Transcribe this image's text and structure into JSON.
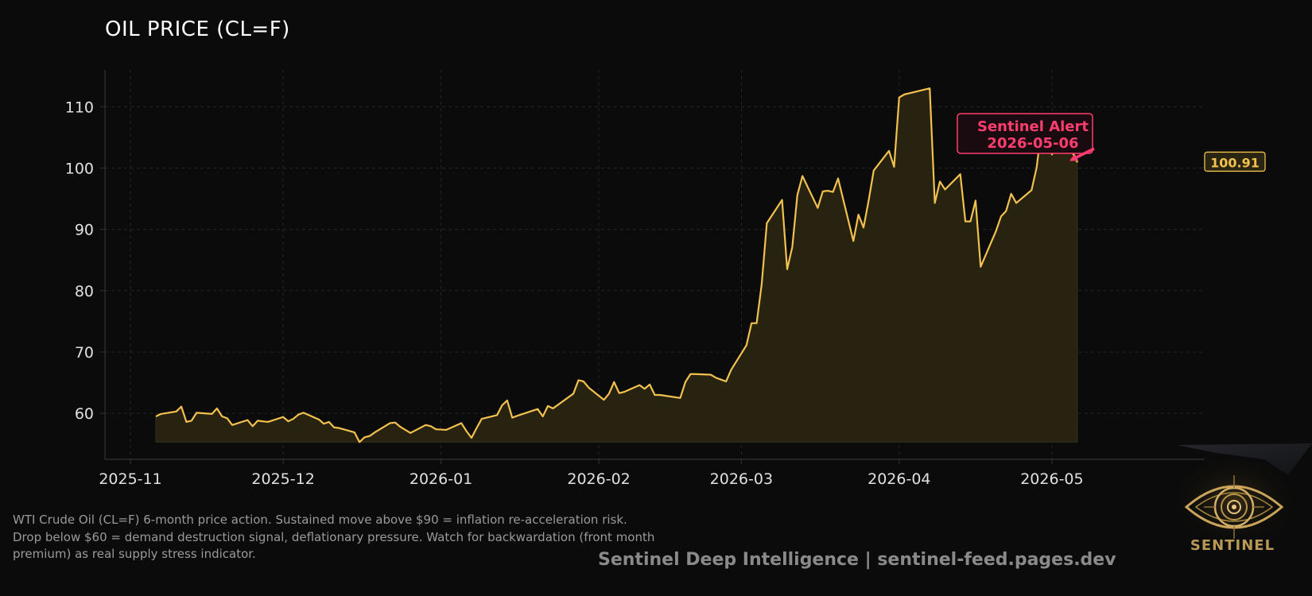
{
  "header": {
    "title": "OIL PRICE (CL=F)"
  },
  "chart_data": {
    "type": "area",
    "title": "OIL PRICE (CL=F)",
    "xlabel": "",
    "ylabel": "",
    "x_ticks": [
      "2025-11",
      "2025-12",
      "2026-01",
      "2026-02",
      "2026-03",
      "2026-04",
      "2026-05"
    ],
    "y_ticks": [
      60,
      70,
      80,
      90,
      100,
      110
    ],
    "xlim": [
      "2025-10-27",
      "2026-05-31"
    ],
    "ylim": [
      52.5,
      116
    ],
    "grid": true,
    "fill_baseline": 55.3,
    "colors": {
      "line": "#f2c14e",
      "fill": "#2a2412",
      "alert": "#ff3d6e",
      "grid": "#262626",
      "axis": "#333333",
      "tick_text": "#e0e0e0"
    },
    "series": [
      {
        "name": "",
        "x": [
          "2025-11-06",
          "2025-11-07",
          "2025-11-10",
          "2025-11-11",
          "2025-11-12",
          "2025-11-13",
          "2025-11-14",
          "2025-11-17",
          "2025-11-18",
          "2025-11-19",
          "2025-11-20",
          "2025-11-21",
          "2025-11-24",
          "2025-11-25",
          "2025-11-26",
          "2025-11-27",
          "2025-11-28",
          "2025-12-01",
          "2025-12-02",
          "2025-12-03",
          "2025-12-04",
          "2025-12-05",
          "2025-12-08",
          "2025-12-09",
          "2025-12-10",
          "2025-12-11",
          "2025-12-12",
          "2025-12-15",
          "2025-12-16",
          "2025-12-17",
          "2025-12-18",
          "2025-12-19",
          "2025-12-22",
          "2025-12-23",
          "2025-12-24",
          "2025-12-26",
          "2025-12-29",
          "2025-12-30",
          "2025-12-31",
          "2026-01-02",
          "2026-01-05",
          "2026-01-06",
          "2026-01-07",
          "2026-01-08",
          "2026-01-09",
          "2026-01-12",
          "2026-01-13",
          "2026-01-14",
          "2026-01-15",
          "2026-01-16",
          "2026-01-20",
          "2026-01-21",
          "2026-01-22",
          "2026-01-23",
          "2026-01-26",
          "2026-01-27",
          "2026-01-28",
          "2026-01-29",
          "2026-01-30",
          "2026-02-02",
          "2026-02-03",
          "2026-02-04",
          "2026-02-05",
          "2026-02-06",
          "2026-02-09",
          "2026-02-10",
          "2026-02-11",
          "2026-02-12",
          "2026-02-13",
          "2026-02-17",
          "2026-02-18",
          "2026-02-19",
          "2026-02-20",
          "2026-02-23",
          "2026-02-24",
          "2026-02-25",
          "2026-02-26",
          "2026-02-27",
          "2026-03-02",
          "2026-03-03",
          "2026-03-04",
          "2026-03-05",
          "2026-03-06",
          "2026-03-09",
          "2026-03-10",
          "2026-03-11",
          "2026-03-12",
          "2026-03-13",
          "2026-03-16",
          "2026-03-17",
          "2026-03-18",
          "2026-03-19",
          "2026-03-20",
          "2026-03-23",
          "2026-03-24",
          "2026-03-25",
          "2026-03-26",
          "2026-03-27",
          "2026-03-30",
          "2026-03-31",
          "2026-04-01",
          "2026-04-02",
          "2026-04-06",
          "2026-04-07",
          "2026-04-08",
          "2026-04-09",
          "2026-04-10",
          "2026-04-13",
          "2026-04-14",
          "2026-04-15",
          "2026-04-16",
          "2026-04-17",
          "2026-04-20",
          "2026-04-21",
          "2026-04-22",
          "2026-04-23",
          "2026-04-24",
          "2026-04-27",
          "2026-04-28",
          "2026-04-29",
          "2026-04-30",
          "2026-05-01",
          "2026-05-04",
          "2026-05-05",
          "2026-05-06"
        ],
        "y": [
          59.5,
          59.9,
          60.3,
          61.1,
          58.6,
          58.8,
          60.1,
          59.9,
          60.8,
          59.5,
          59.2,
          58.1,
          58.9,
          57.9,
          58.8,
          58.7,
          58.6,
          59.4,
          58.7,
          59.1,
          59.8,
          60.1,
          59.0,
          58.3,
          58.6,
          57.7,
          57.6,
          56.9,
          55.3,
          56.1,
          56.3,
          56.9,
          58.4,
          58.5,
          57.8,
          56.8,
          58.1,
          57.9,
          57.4,
          57.3,
          58.4,
          57.1,
          56.0,
          57.6,
          59.1,
          59.7,
          61.3,
          62.1,
          59.3,
          59.6,
          60.7,
          59.5,
          61.2,
          60.8,
          62.6,
          63.2,
          65.4,
          65.2,
          64.2,
          62.2,
          63.2,
          65.1,
          63.3,
          63.5,
          64.6,
          64.0,
          64.7,
          63.0,
          63.0,
          62.5,
          65.1,
          66.4,
          66.4,
          66.3,
          65.8,
          65.5,
          65.2,
          67.1,
          71.1,
          74.7,
          74.7,
          81.1,
          91.0,
          94.8,
          83.5,
          87.1,
          95.6,
          98.7,
          93.5,
          96.2,
          96.3,
          96.1,
          98.3,
          88.1,
          92.4,
          90.3,
          94.7,
          99.6,
          102.8,
          100.2,
          111.5,
          112.0,
          112.8,
          113.0,
          94.3,
          97.8,
          96.5,
          99.0,
          91.3,
          91.3,
          94.7,
          83.9,
          89.7,
          92.1,
          93.0,
          95.8,
          94.3,
          96.4,
          100.1,
          106.8,
          105.0,
          102.2,
          106.4,
          102.6,
          100.91
        ]
      }
    ],
    "last_value": "100.91",
    "annotations": [
      {
        "text": "Sentinel Alert",
        "date_text": "2026-05-06",
        "x": "2026-05-06",
        "y": 100.91
      }
    ]
  },
  "description": {
    "lines": [
      "WTI Crude Oil (CL=F) 6-month price action. Sustained move above $90 = inflation re-acceleration risk.",
      "Drop below $60 = demand destruction signal, deflationary pressure. Watch for backwardation (front month",
      "premium) as real supply stress indicator."
    ]
  },
  "footer": {
    "credit": "Sentinel Deep Intelligence  |  sentinel-feed.pages.dev",
    "logo_text": "SENTINEL",
    "logo_icon": "eye-icon"
  }
}
